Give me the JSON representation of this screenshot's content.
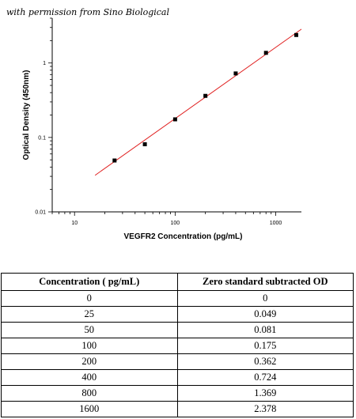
{
  "caption": "with permission from Sino Biological",
  "chart_data": {
    "type": "scatter",
    "xscale": "log",
    "yscale": "log",
    "xlabel": "VEGFR2 Concentration (pg/mL)",
    "ylabel": "Optical Density (450nm)",
    "xlim": [
      6,
      1800
    ],
    "ylim": [
      0.01,
      4
    ],
    "x_ticks": [
      10,
      100,
      1000
    ],
    "x_tick_labels": [
      "10",
      "100",
      "1000"
    ],
    "y_ticks": [
      0.01,
      0.1,
      1
    ],
    "y_tick_labels": [
      "0.01",
      "0.1",
      "1"
    ],
    "points": {
      "x": [
        25,
        50,
        100,
        200,
        400,
        800,
        1600
      ],
      "y": [
        0.049,
        0.081,
        0.175,
        0.362,
        0.724,
        1.369,
        2.378
      ]
    },
    "fit_line": {
      "x": [
        16,
        1800
      ],
      "y": [
        0.031,
        2.85
      ],
      "color": "#e02020"
    },
    "marker_color": "#000000",
    "grid": false
  },
  "table": {
    "headers": [
      "Concentration ( pg/mL)",
      "Zero standard subtracted OD"
    ],
    "rows": [
      [
        "0",
        "0"
      ],
      [
        "25",
        "0.049"
      ],
      [
        "50",
        "0.081"
      ],
      [
        "100",
        "0.175"
      ],
      [
        "200",
        "0.362"
      ],
      [
        "400",
        "0.724"
      ],
      [
        "800",
        "1.369"
      ],
      [
        "1600",
        "2.378"
      ]
    ]
  }
}
